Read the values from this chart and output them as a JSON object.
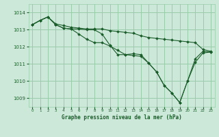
{
  "title": "Graphe pression niveau de la mer (hPa)",
  "background_color": "#cce8d8",
  "grid_color": "#99ccaa",
  "line_color": "#1a5c2a",
  "xlim": [
    -0.5,
    23.5
  ],
  "ylim": [
    1008.5,
    1014.5
  ],
  "yticks": [
    1009,
    1010,
    1011,
    1012,
    1013,
    1014
  ],
  "xticks": [
    0,
    1,
    2,
    3,
    4,
    5,
    6,
    7,
    8,
    9,
    10,
    11,
    12,
    13,
    14,
    15,
    16,
    17,
    18,
    19,
    20,
    21,
    22,
    23
  ],
  "lines": [
    {
      "x": [
        0,
        1,
        2,
        3,
        4,
        5,
        6,
        7,
        8,
        9,
        10,
        11,
        12,
        13,
        14,
        15,
        16,
        17,
        18,
        19,
        20,
        21,
        22,
        23
      ],
      "y": [
        1013.3,
        1013.55,
        1013.75,
        1013.35,
        1013.25,
        1013.15,
        1013.1,
        1013.05,
        1013.05,
        1013.05,
        1012.95,
        1012.9,
        1012.85,
        1012.8,
        1012.65,
        1012.55,
        1012.5,
        1012.45,
        1012.4,
        1012.35,
        1012.3,
        1012.25,
        1011.85,
        1011.75
      ]
    },
    {
      "x": [
        0,
        1,
        2,
        3,
        4,
        5,
        6,
        7,
        8,
        9,
        10,
        11,
        12,
        13,
        14,
        15,
        16,
        17,
        18,
        19,
        20,
        21,
        22,
        23
      ],
      "y": [
        1013.3,
        1013.55,
        1013.75,
        1013.3,
        1013.1,
        1013.05,
        1013.05,
        1013.0,
        1013.0,
        1012.75,
        1012.1,
        1011.55,
        1011.55,
        1011.6,
        1011.55,
        1011.05,
        1010.55,
        1009.75,
        1009.3,
        1008.75,
        1010.0,
        1011.3,
        1011.75,
        1011.7
      ]
    },
    {
      "x": [
        0,
        1,
        2,
        3,
        4,
        5,
        6,
        7,
        8,
        9,
        10,
        11,
        12,
        13,
        14,
        15,
        16,
        17,
        18,
        19,
        20,
        21,
        22,
        23
      ],
      "y": [
        1013.3,
        1013.55,
        1013.75,
        1013.3,
        1013.1,
        1013.05,
        1012.75,
        1012.45,
        1012.25,
        1012.25,
        1012.05,
        1011.8,
        1011.55,
        1011.5,
        1011.45,
        1011.05,
        1010.55,
        1009.75,
        1009.3,
        1008.75,
        1010.0,
        1011.1,
        1011.65,
        1011.7
      ]
    }
  ]
}
